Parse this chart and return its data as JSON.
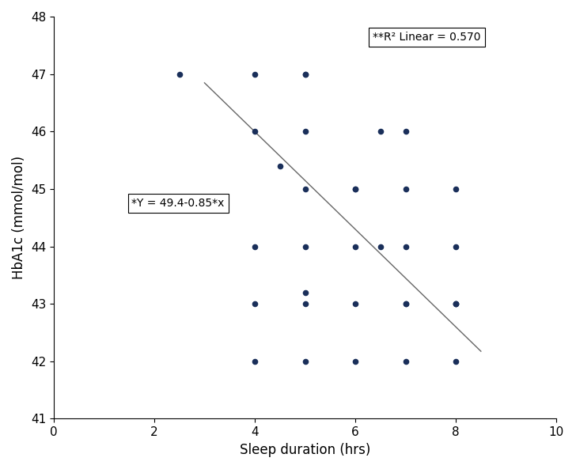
{
  "scatter_x": [
    2.5,
    4.0,
    4.5,
    5.0,
    5.0,
    4.0,
    4.0,
    5.0,
    5.0,
    6.0,
    6.0,
    6.5,
    7.0,
    7.0,
    8.0,
    4.0,
    5.0,
    6.0,
    6.5,
    7.0,
    7.0,
    8.0,
    4.0,
    5.0,
    6.0,
    7.0,
    8.0,
    8.0,
    5.0,
    5.0,
    6.0,
    7.0,
    8.0,
    8.0
  ],
  "scatter_y": [
    47.0,
    47.0,
    45.4,
    47.0,
    47.0,
    46.0,
    44.0,
    46.0,
    45.0,
    45.0,
    45.0,
    46.0,
    46.0,
    45.0,
    45.0,
    43.0,
    44.0,
    44.0,
    44.0,
    44.0,
    43.0,
    44.0,
    42.0,
    42.0,
    42.0,
    42.0,
    42.0,
    43.0,
    43.2,
    43.0,
    43.0,
    43.0,
    43.0,
    43.0
  ],
  "dot_color": "#1a2f5a",
  "dot_size": 30,
  "line_x": [
    3.0,
    8.5
  ],
  "line_intercept": 49.4,
  "line_slope": -0.85,
  "line_color": "#666666",
  "line_width": 1.0,
  "xlabel": "Sleep duration (hrs)",
  "ylabel": "HbA1c (mmol/mol)",
  "xlim": [
    0,
    10
  ],
  "ylim": [
    41,
    48
  ],
  "xticks": [
    0,
    2,
    4,
    6,
    8,
    10
  ],
  "yticks": [
    41,
    42,
    43,
    44,
    45,
    46,
    47,
    48
  ],
  "equation_text": "*Y = 49.4-0.85*x",
  "equation_x": 1.55,
  "equation_y": 44.75,
  "r2_text": "**R² Linear = 0.570",
  "r2_x": 6.35,
  "r2_y": 47.65,
  "label_fontsize": 12,
  "tick_fontsize": 11,
  "annot_fontsize": 10
}
